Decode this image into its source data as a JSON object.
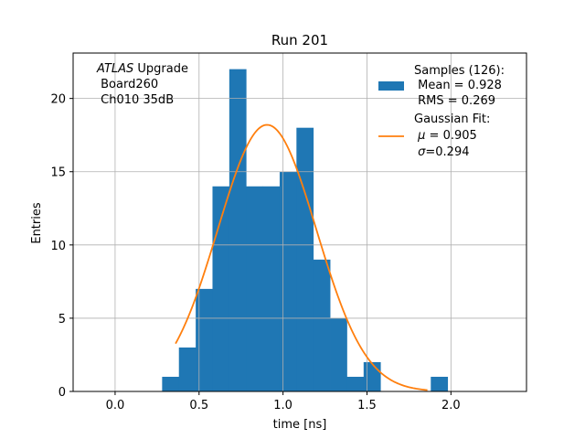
{
  "chart_data": {
    "type": "bar",
    "title": "Run 201",
    "xlabel": "time [ns]",
    "ylabel": "Entries",
    "xlim": [
      -0.25,
      2.45
    ],
    "ylim": [
      0,
      23.1
    ],
    "xticks": [
      0.0,
      0.5,
      1.0,
      1.5,
      2.0
    ],
    "xtick_labels": [
      "0.0",
      "0.5",
      "1.0",
      "1.5",
      "2.0"
    ],
    "yticks": [
      0,
      5,
      10,
      15,
      20
    ],
    "ytick_labels": [
      "0",
      "5",
      "10",
      "15",
      "20"
    ],
    "grid": true,
    "bar_color": "#1f77b4",
    "fit_color": "#ff7f0e",
    "histogram": {
      "bin_edges": [
        0.28,
        0.38,
        0.48,
        0.58,
        0.68,
        0.78,
        0.88,
        0.98,
        1.08,
        1.18,
        1.28,
        1.38,
        1.48,
        1.58,
        1.68,
        1.78,
        1.88,
        1.98
      ],
      "counts": [
        1,
        3,
        7,
        14,
        22,
        14,
        14,
        15,
        18,
        9,
        5,
        1,
        2,
        0,
        0,
        0,
        1
      ]
    },
    "fit": {
      "mu": 0.905,
      "sigma": 0.294,
      "amplitude": 18.2,
      "x_range": [
        0.36,
        1.86
      ]
    },
    "annotation": {
      "italic_word": "ATLAS",
      "line1_rest": " Upgrade",
      "line2": " Board260",
      "line3": " Ch010 35dB"
    },
    "legend": {
      "placement": "top-right",
      "samples": {
        "line1": "Samples (126):",
        "line2": " Mean = 0.928",
        "line3": " RMS = 0.269"
      },
      "fit": {
        "line1": "Gaussian Fit:",
        "mu_symbol": "μ",
        "mu_text": " = 0.905",
        "sigma_symbol": "σ",
        "sigma_text": "=0.294"
      }
    }
  }
}
